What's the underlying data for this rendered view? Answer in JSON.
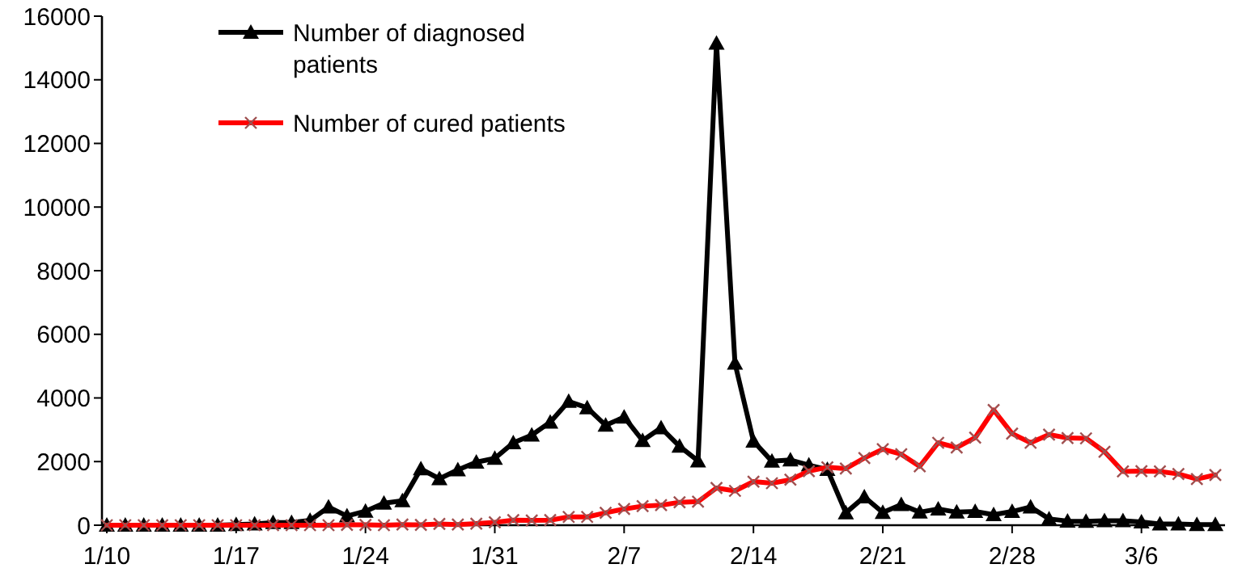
{
  "chart_data": {
    "type": "line",
    "categories": [
      "1/10",
      null,
      null,
      null,
      null,
      null,
      null,
      "1/17",
      null,
      null,
      null,
      null,
      null,
      null,
      "1/24",
      null,
      null,
      null,
      null,
      null,
      null,
      "1/31",
      null,
      null,
      null,
      null,
      null,
      null,
      "2/7",
      null,
      null,
      null,
      null,
      null,
      null,
      "2/14",
      null,
      null,
      null,
      null,
      null,
      null,
      "2/21",
      null,
      null,
      null,
      null,
      null,
      null,
      "2/28",
      null,
      null,
      null,
      null,
      null,
      null,
      "3/6",
      null,
      null,
      null,
      null
    ],
    "ylim": [
      0,
      16000
    ],
    "yticks": [
      0,
      2000,
      4000,
      6000,
      8000,
      10000,
      12000,
      14000,
      16000
    ],
    "grid": false,
    "legend": "top left",
    "series": [
      {
        "name": "Number of diagnosed patients",
        "color": "#000000",
        "marker": "triangle",
        "values": [
          0,
          0,
          0,
          0,
          0,
          0,
          0,
          20,
          40,
          80,
          80,
          150,
          570,
          290,
          440,
          690,
          770,
          1770,
          1460,
          1740,
          1980,
          2100,
          2590,
          2830,
          3240,
          3890,
          3690,
          3140,
          3400,
          2660,
          3060,
          2480,
          2020,
          15150,
          5090,
          2640,
          2010,
          2050,
          1890,
          1750,
          390,
          890,
          400,
          650,
          410,
          510,
          410,
          430,
          330,
          430,
          570,
          200,
          130,
          120,
          140,
          140,
          100,
          40,
          40,
          20,
          20
        ]
      },
      {
        "name": "Number of cured patients",
        "color": "#ff0000",
        "marker": "cross",
        "values": [
          0,
          0,
          0,
          0,
          0,
          0,
          0,
          0,
          0,
          0,
          0,
          0,
          0,
          10,
          10,
          0,
          20,
          10,
          40,
          20,
          50,
          90,
          160,
          150,
          160,
          260,
          260,
          390,
          510,
          600,
          630,
          720,
          740,
          1170,
          1080,
          1370,
          1320,
          1430,
          1700,
          1820,
          1780,
          2110,
          2390,
          2230,
          1850,
          2590,
          2440,
          2750,
          3620,
          2880,
          2590,
          2850,
          2740,
          2730,
          2310,
          1690,
          1700,
          1690,
          1610,
          1450,
          1580
        ]
      }
    ]
  }
}
